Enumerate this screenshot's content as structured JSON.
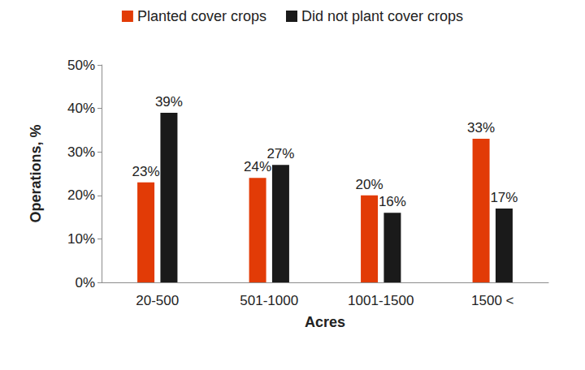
{
  "chart_data": {
    "type": "bar",
    "x_label": "Acres",
    "y_label": "Operations, %",
    "categories": [
      "20-500",
      "501-1000",
      "1001-1500",
      "1500 <"
    ],
    "series": [
      {
        "name": "Planted cover crops",
        "color": "#e23b06",
        "values": [
          23,
          24,
          20,
          33
        ],
        "value_labels": [
          "23%",
          "24%",
          "20%",
          "33%"
        ]
      },
      {
        "name": "Did not plant cover crops",
        "color": "#1a1a1a",
        "values": [
          39,
          27,
          16,
          17
        ],
        "value_labels": [
          "39%",
          "27%",
          "16%",
          "17%"
        ]
      }
    ],
    "ylim": [
      0,
      50
    ],
    "yticks": [
      {
        "value": 0,
        "label": "0%"
      },
      {
        "value": 10,
        "label": "10%"
      },
      {
        "value": 20,
        "label": "20%"
      },
      {
        "value": 30,
        "label": "30%"
      },
      {
        "value": 40,
        "label": "40%"
      },
      {
        "value": 50,
        "label": "50%"
      }
    ],
    "grid": false,
    "legend": "top",
    "data_labels": true
  }
}
